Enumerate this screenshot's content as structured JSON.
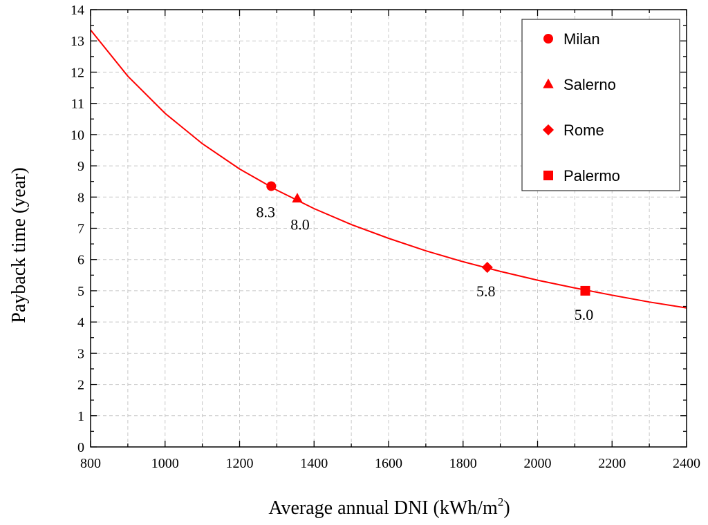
{
  "chart_data": {
    "type": "scatter",
    "title": "",
    "xlabel": "Average annual DNI (kWh/m",
    "xlabel_sup": "2",
    "xlabel_end": ")",
    "ylabel": "Payback time (year)",
    "xlim": [
      800,
      2400
    ],
    "ylim": [
      0,
      14
    ],
    "x_ticks": [
      "800",
      "1000",
      "1200",
      "1400",
      "1600",
      "1800",
      "2000",
      "2200",
      "2400"
    ],
    "y_ticks": [
      "0",
      "1",
      "2",
      "3",
      "4",
      "5",
      "6",
      "7",
      "8",
      "9",
      "10",
      "11",
      "12",
      "13",
      "14"
    ],
    "grid": true,
    "legend_position": "top-right",
    "series_color": "#ff0000",
    "curve": {
      "name": "fit",
      "x": [
        800,
        900,
        1000,
        1100,
        1200,
        1300,
        1400,
        1500,
        1600,
        1700,
        1800,
        1900,
        2000,
        2100,
        2200,
        2300,
        2400
      ],
      "y": [
        13.35,
        11.87,
        10.68,
        9.71,
        8.9,
        8.22,
        7.63,
        7.12,
        6.68,
        6.28,
        5.93,
        5.62,
        5.34,
        5.09,
        4.86,
        4.64,
        4.45
      ]
    },
    "points": [
      {
        "name": "Milan",
        "marker": "circle",
        "x": 1285,
        "y": 8.35,
        "label": "8.3",
        "label_pos": "below-left"
      },
      {
        "name": "Salerno",
        "marker": "triangle",
        "x": 1355,
        "y": 7.95,
        "label": "8.0",
        "label_pos": "below-right"
      },
      {
        "name": "Rome",
        "marker": "diamond",
        "x": 1865,
        "y": 5.75,
        "label": "5.8",
        "label_pos": "below"
      },
      {
        "name": "Palermo",
        "marker": "square",
        "x": 2128,
        "y": 5.0,
        "label": "5.0",
        "label_pos": "below"
      }
    ]
  }
}
